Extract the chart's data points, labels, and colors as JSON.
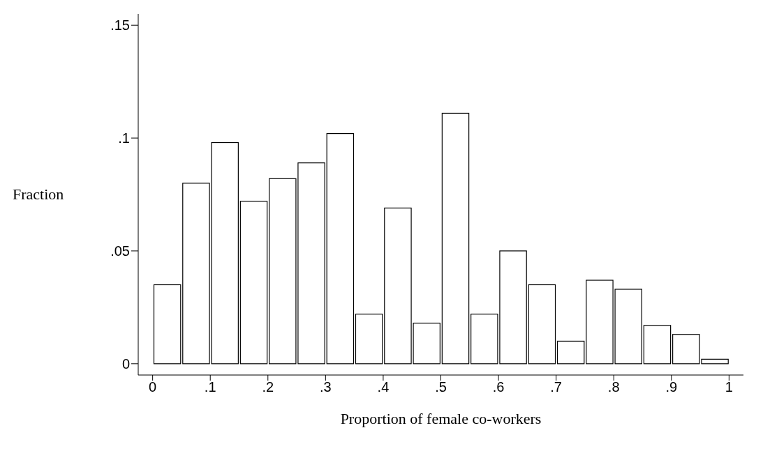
{
  "chart_data": {
    "type": "histogram",
    "xlabel": "Proportion of female co-workers",
    "ylabel": "Fraction",
    "bins": [
      0,
      0.05,
      0.1,
      0.15,
      0.2,
      0.25,
      0.3,
      0.35,
      0.4,
      0.45,
      0.5,
      0.55,
      0.6,
      0.65,
      0.7,
      0.75,
      0.8,
      0.85,
      0.9,
      0.95,
      1
    ],
    "values": [
      0.035,
      0.08,
      0.098,
      0.072,
      0.082,
      0.089,
      0.102,
      0.022,
      0.069,
      0.018,
      0.111,
      0.022,
      0.05,
      0.035,
      0.01,
      0.037,
      0.033,
      0.017,
      0.013,
      0.002
    ],
    "color": "#ffffff",
    "xlim": [
      -0.025,
      1.025
    ],
    "xticks": [
      0,
      {
        "value": 0.1,
        "label": ".1"
      },
      {
        "value": 0.2,
        "label": ".2"
      },
      {
        "value": 0.3,
        "label": ".3"
      },
      {
        "value": 0.4,
        "label": ".4"
      },
      {
        "value": 0.5,
        "label": ".5"
      },
      {
        "value": 0.6,
        "label": ".6"
      },
      {
        "value": 0.7,
        "label": ".7"
      },
      {
        "value": 0.8,
        "label": ".8"
      },
      {
        "value": 0.9,
        "label": ".9"
      },
      1
    ],
    "ylim": [
      -0.005,
      0.155
    ],
    "yticks": [
      0,
      {
        "value": 0.05,
        "label": ".05"
      },
      {
        "value": 0.1,
        "label": ".1"
      },
      {
        "value": 0.15,
        "label": ".15"
      }
    ],
    "grid": false,
    "legend": false
  }
}
